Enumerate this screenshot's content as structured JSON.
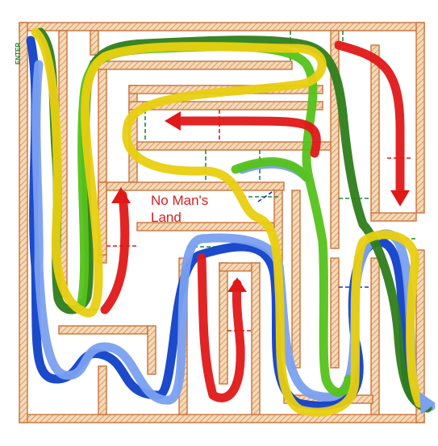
{
  "labels": {
    "region_line1": "No Man's",
    "region_line2": "Land",
    "entry_tag": "ENTER"
  },
  "colors": {
    "wall_fill": "#f6d9b8",
    "wall_stroke": "#c8743a",
    "wall_hatch": "#d08a4e",
    "path_dark_green": "#2e7d1a",
    "path_light_green": "#55c21a",
    "path_yellow": "#e8cf10",
    "path_dark_blue": "#1040c8",
    "path_light_blue": "#7aa0f0",
    "path_red": "#e01818",
    "gate_green": "#1a8a3a",
    "gate_red": "#e01818",
    "gate_blue": "#2030c0",
    "label_red": "#d62020"
  },
  "paths": [
    {
      "id": "dark-blue-path",
      "color_key": "path_dark_blue"
    },
    {
      "id": "light-blue-path",
      "color_key": "path_light_blue"
    },
    {
      "id": "dark-green-path",
      "color_key": "path_dark_green"
    },
    {
      "id": "light-green-path",
      "color_key": "path_light_green"
    },
    {
      "id": "yellow-path",
      "color_key": "path_yellow"
    },
    {
      "id": "red-path",
      "color_key": "path_red"
    }
  ]
}
